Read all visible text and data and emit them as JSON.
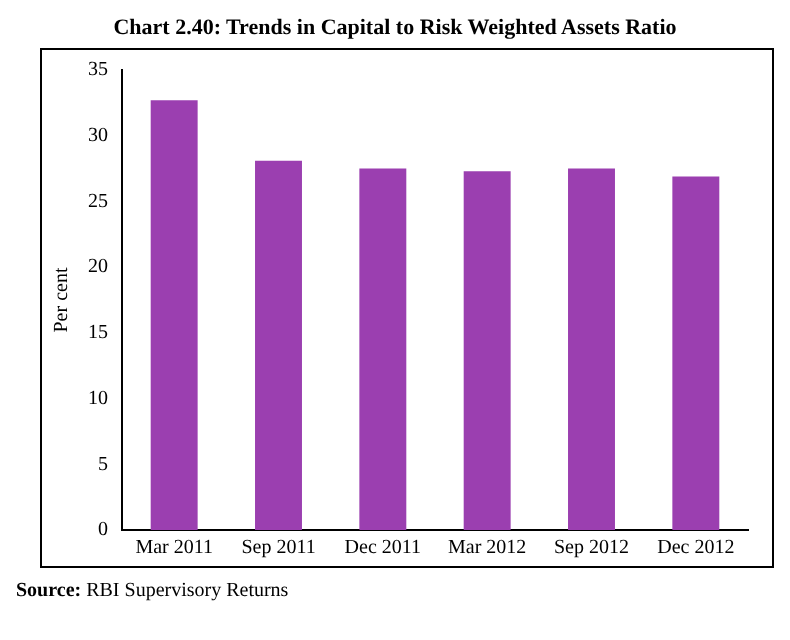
{
  "chart_data": {
    "type": "bar",
    "title": "Chart 2.40: Trends in Capital to Risk Weighted Assets Ratio",
    "ylabel": "Per cent",
    "categories": [
      "Mar 2011",
      "Sep 2011",
      "Dec 2011",
      "Mar 2012",
      "Sep 2012",
      "Dec 2012"
    ],
    "values": [
      32.7,
      28.1,
      27.5,
      27.3,
      27.5,
      26.9
    ],
    "color": "#9b3fb0",
    "ylim": [
      0,
      35
    ],
    "yticks": [
      0,
      5,
      10,
      15,
      20,
      25,
      30,
      35
    ],
    "grid": false,
    "legend": false,
    "annotations": [
      "Source: RBI Supervisory Returns"
    ]
  }
}
